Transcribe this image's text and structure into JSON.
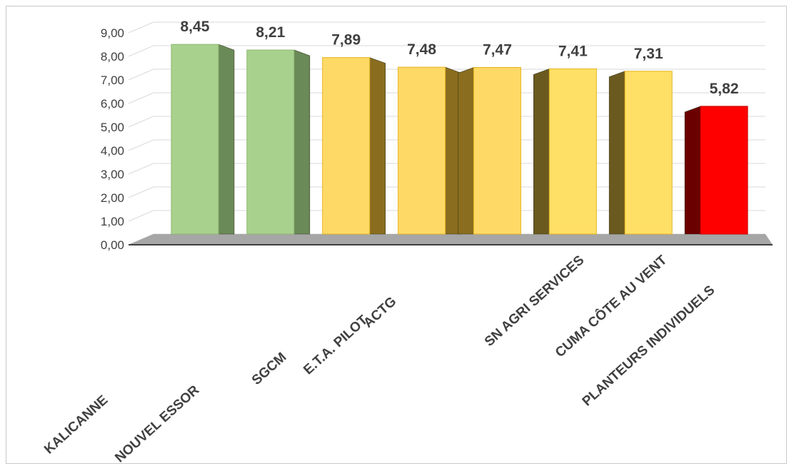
{
  "chart_data": {
    "type": "bar",
    "title": "",
    "xlabel": "",
    "ylabel": "",
    "categories": [
      "KALICANNE",
      "NOUVEL ESSOR",
      "SGCM",
      "E.T.A. PILOT",
      "ACTG",
      "SN AGRI SERVICES",
      "CUMA CÔTE AU VENT",
      "PLANTEURS INDIVIDUELS"
    ],
    "values": [
      8.45,
      8.21,
      7.89,
      7.48,
      7.47,
      7.41,
      7.31,
      5.82
    ],
    "value_labels": [
      "8,45",
      "8,21",
      "7,89",
      "7,48",
      "7,47",
      "7,41",
      "7,31",
      "5,82"
    ],
    "y_ticks": [
      "0,00",
      "1,00",
      "2,00",
      "3,00",
      "4,00",
      "5,00",
      "6,00",
      "7,00",
      "8,00",
      "9,00"
    ],
    "ylim": [
      0,
      9
    ],
    "grid": true,
    "legend": "none",
    "style": "3d-column",
    "bar_colors": [
      "#a9d18e",
      "#a9d18e",
      "#ffd966",
      "#ffd966",
      "#ffd966",
      "#ffe066",
      "#ffe066",
      "#ff0000"
    ],
    "bar_side_colors": [
      "#6a8a58",
      "#6a8a58",
      "#8a6d1f",
      "#8a6d1f",
      "#8a6d1f",
      "#6b5a1f",
      "#6b5a1f",
      "#6b0000"
    ],
    "floor_color": "#a6a6a6"
  }
}
